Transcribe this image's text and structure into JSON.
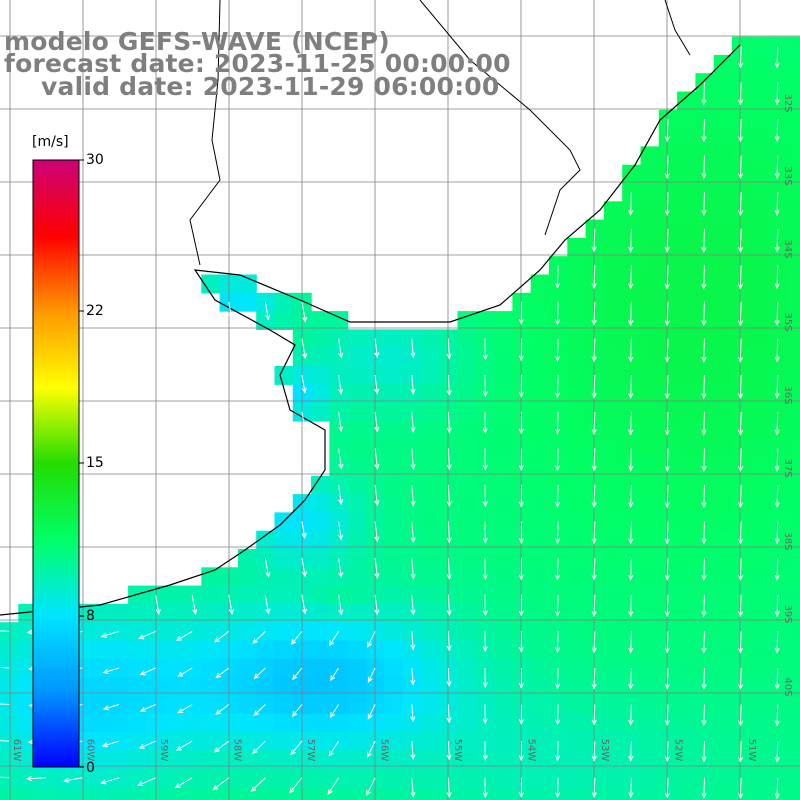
{
  "title": {
    "line1": "modelo GEFS-WAVE (NCEP)",
    "line2": "forecast date: 2023-11-25 00:00:00",
    "line3": "valid date: 2023-11-29 06:00:00"
  },
  "colorbar": {
    "unit": "[m/s]",
    "ticks": [
      "30",
      "22",
      "15",
      "8",
      "0"
    ],
    "min": 0,
    "max": 30,
    "colors": [
      "#0000ff",
      "#0096ff",
      "#00e5ff",
      "#00ff66",
      "#22dd00",
      "#ffff00",
      "#ff9900",
      "#ff0000",
      "#cc0077"
    ]
  },
  "map": {
    "land_color": "#ffffff",
    "coast_color": "#000000",
    "grid_color": "#808080",
    "arrow_color": "#ffffff",
    "lat_labels": [
      "32S",
      "33S",
      "34S",
      "35S",
      "36S",
      "37S",
      "38S",
      "39S",
      "40S"
    ],
    "lon_labels": [
      "61W",
      "60W",
      "59W",
      "58W",
      "57W",
      "56W",
      "55W",
      "54W",
      "53W",
      "52W",
      "51W"
    ],
    "speed_scale": {
      "min": 0,
      "max": 30,
      "unit": "m/s"
    }
  }
}
